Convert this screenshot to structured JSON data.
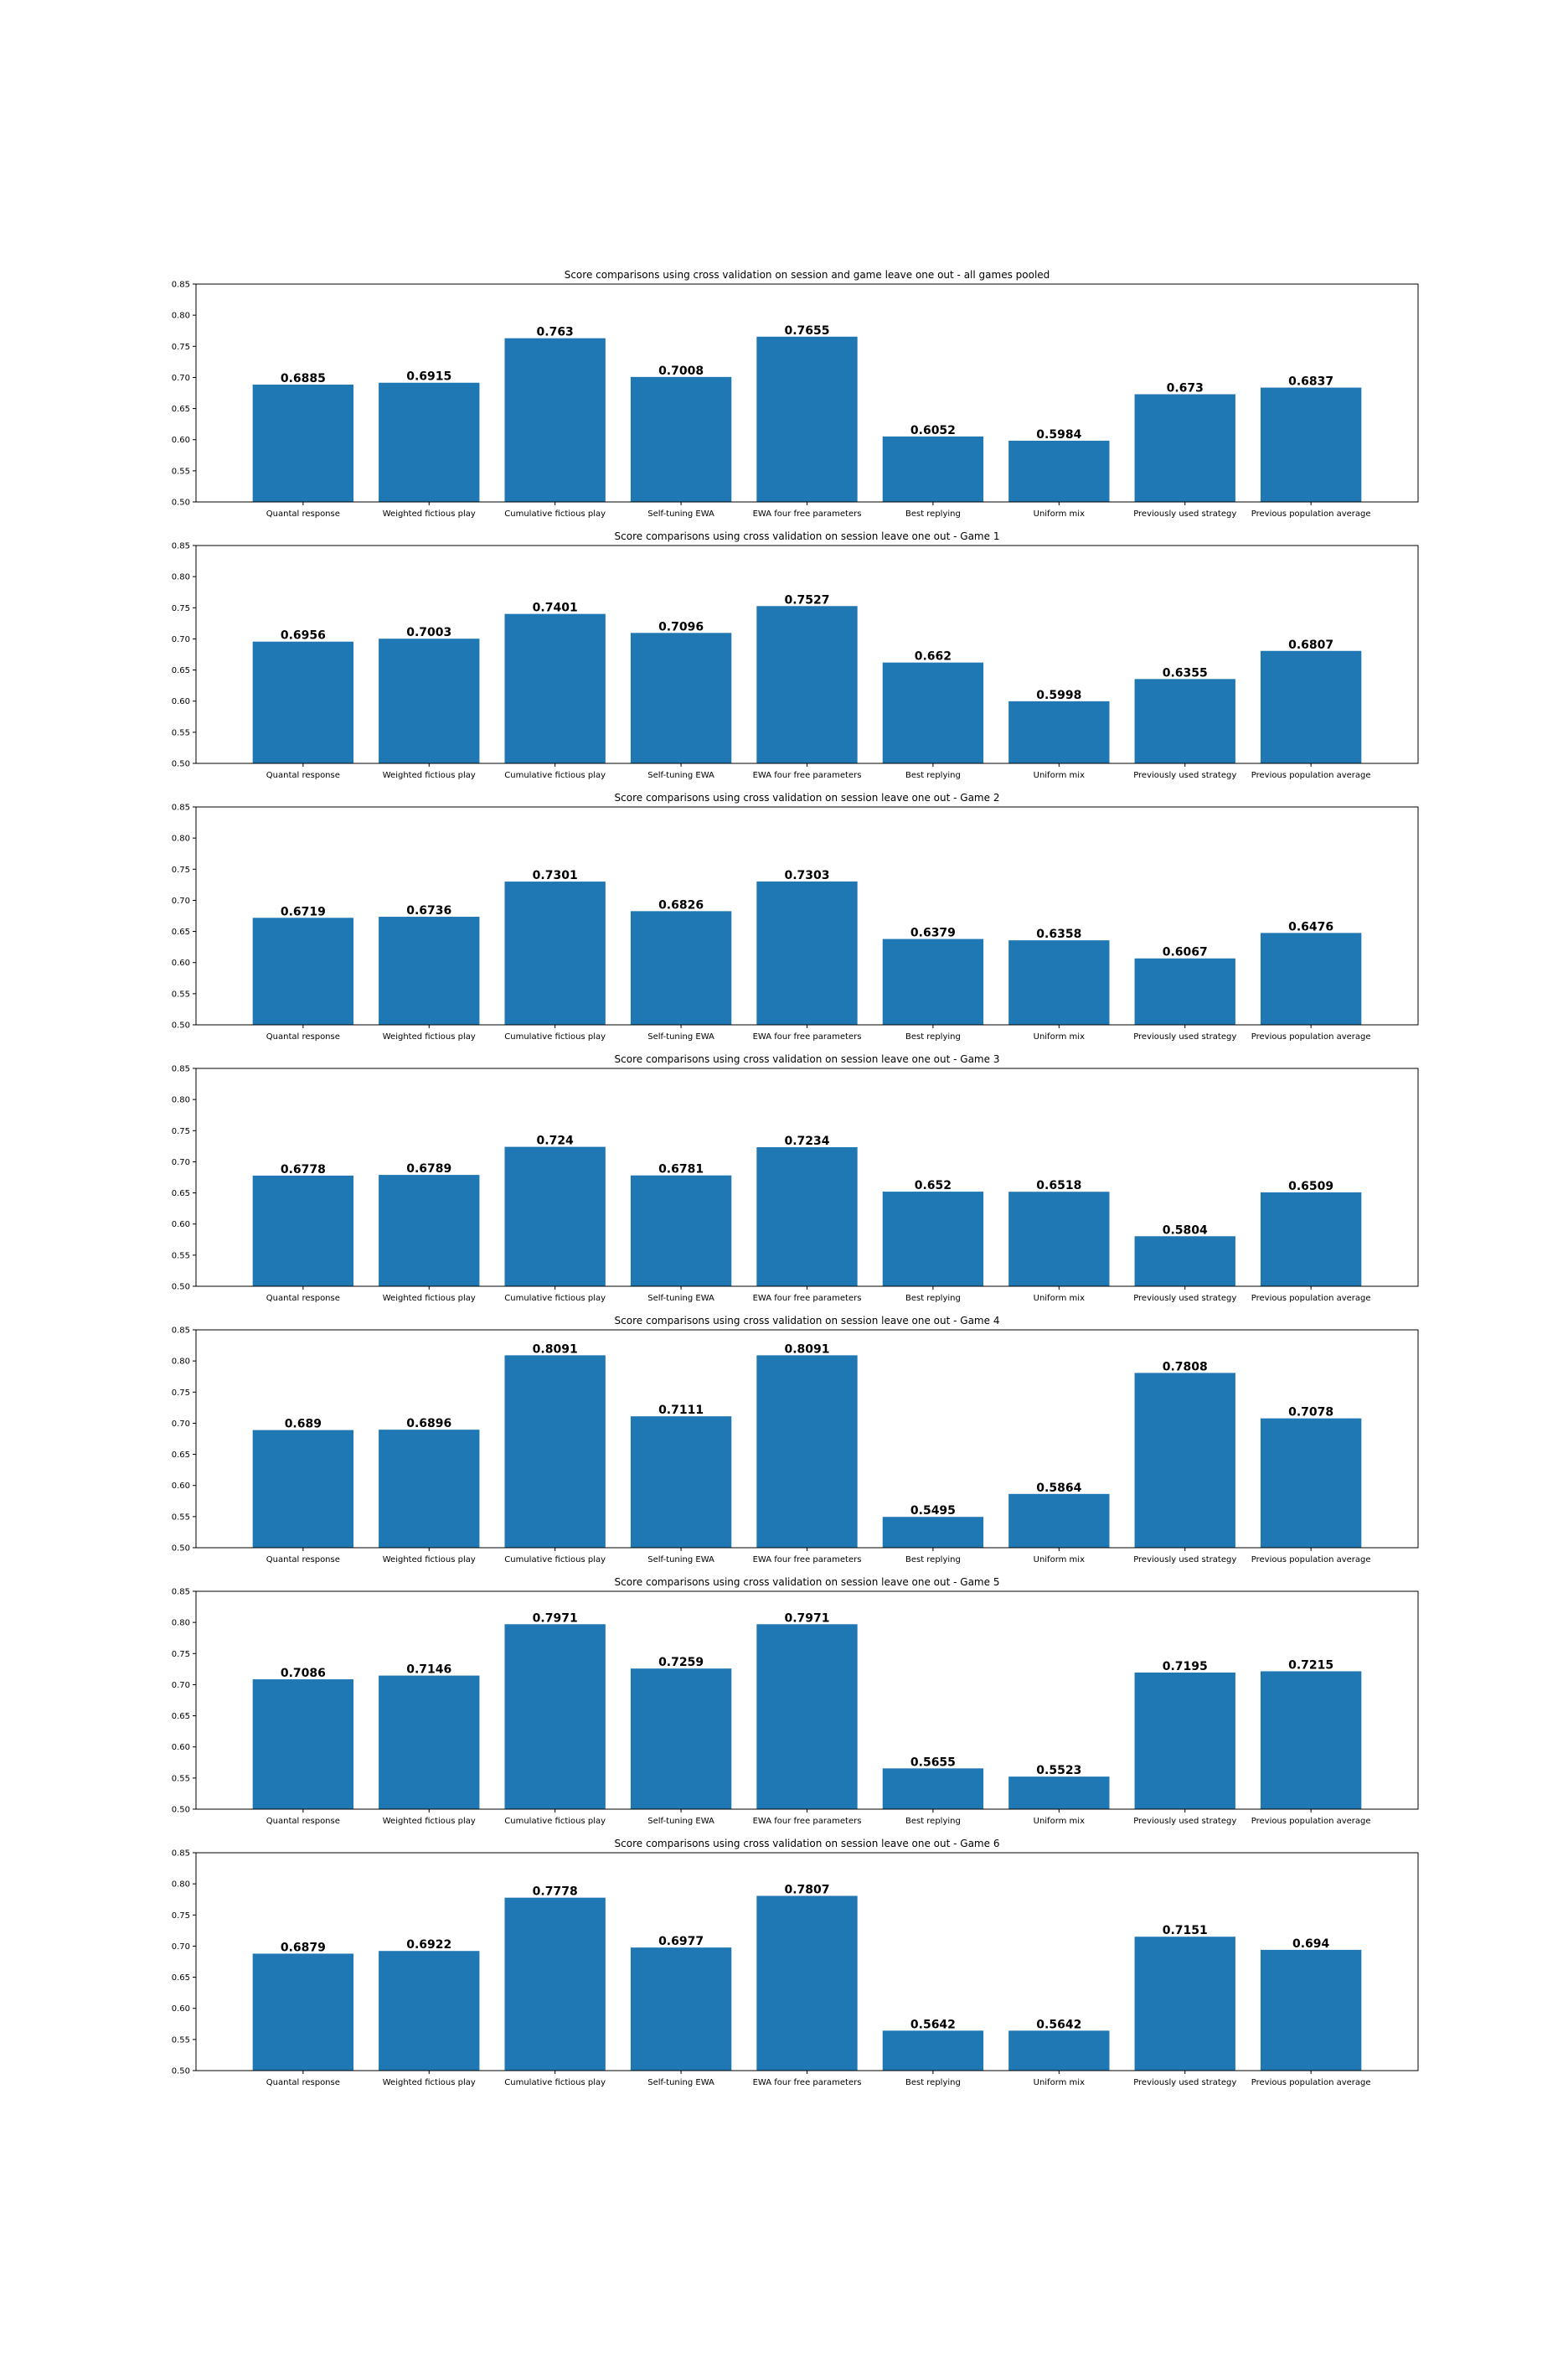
{
  "colors": {
    "bar": "#1f77b4",
    "axis": "#000000",
    "background": "#ffffff"
  },
  "chart_data": [
    {
      "type": "bar",
      "title": "Score comparisons using cross validation on session and game leave one out - all games pooled",
      "categories": [
        "Quantal response",
        "Weighted fictious play",
        "Cumulative fictious play",
        "Self-tuning EWA",
        "EWA four free parameters",
        "Best replying",
        "Uniform mix",
        "Previously used strategy",
        "Previous population average"
      ],
      "values": [
        0.6885,
        0.6915,
        0.763,
        0.7008,
        0.7655,
        0.6052,
        0.5984,
        0.673,
        0.6837
      ],
      "labels": [
        "0.6885",
        "0.6915",
        "0.763",
        "0.7008",
        "0.7655",
        "0.6052",
        "0.5984",
        "0.673",
        "0.6837"
      ],
      "ylim": [
        0.5,
        0.85
      ],
      "yticks": [
        "0.50",
        "0.55",
        "0.60",
        "0.65",
        "0.70",
        "0.75",
        "0.80",
        "0.85"
      ],
      "xlabel": "",
      "ylabel": "",
      "grid": false
    },
    {
      "type": "bar",
      "title": "Score comparisons using cross validation on session leave one out - Game 1",
      "categories": [
        "Quantal response",
        "Weighted fictious play",
        "Cumulative fictious play",
        "Self-tuning EWA",
        "EWA four free parameters",
        "Best replying",
        "Uniform mix",
        "Previously used strategy",
        "Previous population average"
      ],
      "values": [
        0.6956,
        0.7003,
        0.7401,
        0.7096,
        0.7527,
        0.662,
        0.5998,
        0.6355,
        0.6807
      ],
      "labels": [
        "0.6956",
        "0.7003",
        "0.7401",
        "0.7096",
        "0.7527",
        "0.662",
        "0.5998",
        "0.6355",
        "0.6807"
      ],
      "ylim": [
        0.5,
        0.85
      ],
      "yticks": [
        "0.50",
        "0.55",
        "0.60",
        "0.65",
        "0.70",
        "0.75",
        "0.80",
        "0.85"
      ],
      "xlabel": "",
      "ylabel": "",
      "grid": false
    },
    {
      "type": "bar",
      "title": "Score comparisons using cross validation on session leave one out - Game 2",
      "categories": [
        "Quantal response",
        "Weighted fictious play",
        "Cumulative fictious play",
        "Self-tuning EWA",
        "EWA four free parameters",
        "Best replying",
        "Uniform mix",
        "Previously used strategy",
        "Previous population average"
      ],
      "values": [
        0.6719,
        0.6736,
        0.7301,
        0.6826,
        0.7303,
        0.6379,
        0.6358,
        0.6067,
        0.6476
      ],
      "labels": [
        "0.6719",
        "0.6736",
        "0.7301",
        "0.6826",
        "0.7303",
        "0.6379",
        "0.6358",
        "0.6067",
        "0.6476"
      ],
      "ylim": [
        0.5,
        0.85
      ],
      "yticks": [
        "0.50",
        "0.55",
        "0.60",
        "0.65",
        "0.70",
        "0.75",
        "0.80",
        "0.85"
      ],
      "xlabel": "",
      "ylabel": "",
      "grid": false
    },
    {
      "type": "bar",
      "title": "Score comparisons using cross validation on session leave one out - Game 3",
      "categories": [
        "Quantal response",
        "Weighted fictious play",
        "Cumulative fictious play",
        "Self-tuning EWA",
        "EWA four free parameters",
        "Best replying",
        "Uniform mix",
        "Previously used strategy",
        "Previous population average"
      ],
      "values": [
        0.6778,
        0.6789,
        0.724,
        0.6781,
        0.7234,
        0.652,
        0.6518,
        0.5804,
        0.6509
      ],
      "labels": [
        "0.6778",
        "0.6789",
        "0.724",
        "0.6781",
        "0.7234",
        "0.652",
        "0.6518",
        "0.5804",
        "0.6509"
      ],
      "ylim": [
        0.5,
        0.85
      ],
      "yticks": [
        "0.50",
        "0.55",
        "0.60",
        "0.65",
        "0.70",
        "0.75",
        "0.80",
        "0.85"
      ],
      "xlabel": "",
      "ylabel": "",
      "grid": false
    },
    {
      "type": "bar",
      "title": "Score comparisons using cross validation on session leave one out - Game 4",
      "categories": [
        "Quantal response",
        "Weighted fictious play",
        "Cumulative fictious play",
        "Self-tuning EWA",
        "EWA four free parameters",
        "Best replying",
        "Uniform mix",
        "Previously used strategy",
        "Previous population average"
      ],
      "values": [
        0.689,
        0.6896,
        0.8091,
        0.7111,
        0.8091,
        0.5495,
        0.5864,
        0.7808,
        0.7078
      ],
      "labels": [
        "0.689",
        "0.6896",
        "0.8091",
        "0.7111",
        "0.8091",
        "0.5495",
        "0.5864",
        "0.7808",
        "0.7078"
      ],
      "ylim": [
        0.5,
        0.85
      ],
      "yticks": [
        "0.50",
        "0.55",
        "0.60",
        "0.65",
        "0.70",
        "0.75",
        "0.80",
        "0.85"
      ],
      "xlabel": "",
      "ylabel": "",
      "grid": false
    },
    {
      "type": "bar",
      "title": "Score comparisons using cross validation on session leave one out - Game 5",
      "categories": [
        "Quantal response",
        "Weighted fictious play",
        "Cumulative fictious play",
        "Self-tuning EWA",
        "EWA four free parameters",
        "Best replying",
        "Uniform mix",
        "Previously used strategy",
        "Previous population average"
      ],
      "values": [
        0.7086,
        0.7146,
        0.7971,
        0.7259,
        0.7971,
        0.5655,
        0.5523,
        0.7195,
        0.7215
      ],
      "labels": [
        "0.7086",
        "0.7146",
        "0.7971",
        "0.7259",
        "0.7971",
        "0.5655",
        "0.5523",
        "0.7195",
        "0.7215"
      ],
      "ylim": [
        0.5,
        0.85
      ],
      "yticks": [
        "0.50",
        "0.55",
        "0.60",
        "0.65",
        "0.70",
        "0.75",
        "0.80",
        "0.85"
      ],
      "xlabel": "",
      "ylabel": "",
      "grid": false
    },
    {
      "type": "bar",
      "title": "Score comparisons using cross validation on session leave one out - Game 6",
      "categories": [
        "Quantal response",
        "Weighted fictious play",
        "Cumulative fictious play",
        "Self-tuning EWA",
        "EWA four free parameters",
        "Best replying",
        "Uniform mix",
        "Previously used strategy",
        "Previous population average"
      ],
      "values": [
        0.6879,
        0.6922,
        0.7778,
        0.6977,
        0.7807,
        0.5642,
        0.5642,
        0.7151,
        0.694
      ],
      "labels": [
        "0.6879",
        "0.6922",
        "0.7778",
        "0.6977",
        "0.7807",
        "0.5642",
        "0.5642",
        "0.7151",
        "0.694"
      ],
      "ylim": [
        0.5,
        0.85
      ],
      "yticks": [
        "0.50",
        "0.55",
        "0.60",
        "0.65",
        "0.70",
        "0.75",
        "0.80",
        "0.85"
      ],
      "xlabel": "",
      "ylabel": "",
      "grid": false
    }
  ]
}
